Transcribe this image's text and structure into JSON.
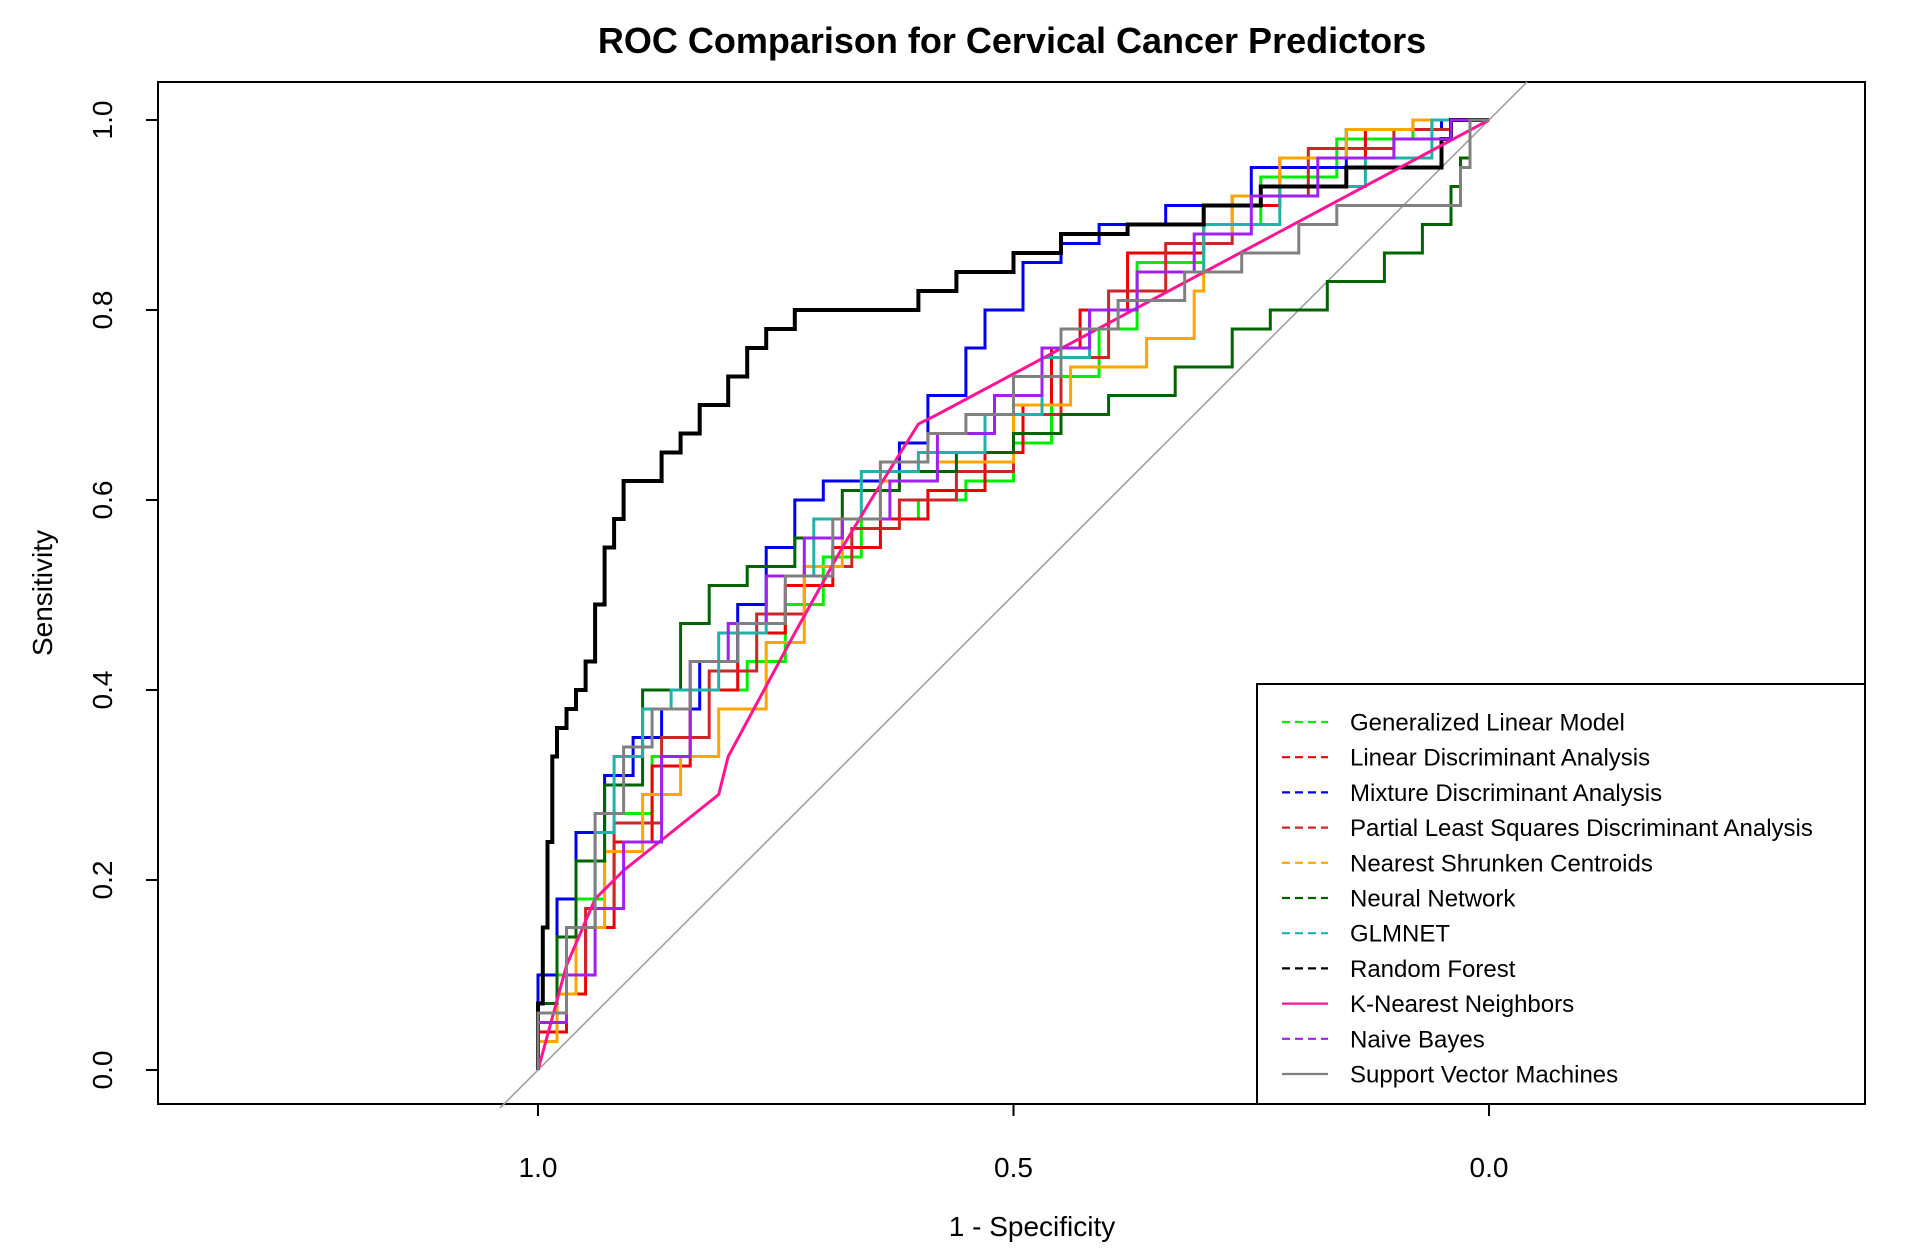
{
  "chart_data": {
    "type": "line",
    "title": "ROC Comparison for Cervical Cancer Predictors",
    "xlabel": "1 - Specificity",
    "ylabel": "Sensitivity",
    "x_axis_reversed": true,
    "xlim": [
      1.4,
      -0.4
    ],
    "ylim": [
      0.0,
      1.0
    ],
    "xticks": [
      1.0,
      0.5,
      0.0
    ],
    "xtick_labels": [
      "1.0",
      "0.5",
      "0.0"
    ],
    "yticks": [
      0.0,
      0.2,
      0.4,
      0.6,
      0.8,
      1.0
    ],
    "ytick_labels": [
      "0.0",
      "0.2",
      "0.4",
      "0.6",
      "0.8",
      "1.0"
    ],
    "grid": false,
    "legend_position": "bottom-right",
    "reference_line": {
      "from": [
        1.0,
        0.0
      ],
      "to": [
        0.0,
        1.0
      ],
      "color": "#a0a0a0"
    },
    "series": [
      {
        "name": "Generalized Linear Model",
        "color": "#00ee00",
        "dashed": true,
        "width": 3,
        "points": [
          [
            1.0,
            0.0
          ],
          [
            0.98,
            0.05
          ],
          [
            0.96,
            0.1
          ],
          [
            0.93,
            0.18
          ],
          [
            0.88,
            0.27
          ],
          [
            0.84,
            0.33
          ],
          [
            0.78,
            0.4
          ],
          [
            0.74,
            0.43
          ],
          [
            0.7,
            0.49
          ],
          [
            0.66,
            0.54
          ],
          [
            0.6,
            0.58
          ],
          [
            0.55,
            0.6
          ],
          [
            0.5,
            0.62
          ],
          [
            0.46,
            0.66
          ],
          [
            0.41,
            0.73
          ],
          [
            0.37,
            0.78
          ],
          [
            0.3,
            0.85
          ],
          [
            0.24,
            0.89
          ],
          [
            0.16,
            0.94
          ],
          [
            0.08,
            0.98
          ],
          [
            0.05,
            1.0
          ],
          [
            0.0,
            1.0
          ]
        ]
      },
      {
        "name": "Linear Discriminant Analysis",
        "color": "#ee0000",
        "dashed": true,
        "width": 3,
        "points": [
          [
            1.0,
            0.0
          ],
          [
            0.97,
            0.04
          ],
          [
            0.95,
            0.08
          ],
          [
            0.92,
            0.15
          ],
          [
            0.88,
            0.24
          ],
          [
            0.84,
            0.32
          ],
          [
            0.79,
            0.4
          ],
          [
            0.74,
            0.46
          ],
          [
            0.69,
            0.51
          ],
          [
            0.64,
            0.55
          ],
          [
            0.59,
            0.58
          ],
          [
            0.53,
            0.61
          ],
          [
            0.49,
            0.65
          ],
          [
            0.46,
            0.7
          ],
          [
            0.43,
            0.76
          ],
          [
            0.38,
            0.8
          ],
          [
            0.3,
            0.86
          ],
          [
            0.22,
            0.91
          ],
          [
            0.13,
            0.96
          ],
          [
            0.06,
            0.99
          ],
          [
            0.0,
            1.0
          ]
        ]
      },
      {
        "name": "Mixture Discriminant Analysis",
        "color": "#0000ee",
        "dashed": true,
        "width": 3,
        "points": [
          [
            1.0,
            0.0
          ],
          [
            0.98,
            0.1
          ],
          [
            0.96,
            0.18
          ],
          [
            0.93,
            0.25
          ],
          [
            0.9,
            0.31
          ],
          [
            0.87,
            0.35
          ],
          [
            0.83,
            0.38
          ],
          [
            0.79,
            0.43
          ],
          [
            0.76,
            0.49
          ],
          [
            0.73,
            0.55
          ],
          [
            0.7,
            0.6
          ],
          [
            0.67,
            0.62
          ],
          [
            0.62,
            0.62
          ],
          [
            0.59,
            0.66
          ],
          [
            0.55,
            0.71
          ],
          [
            0.53,
            0.76
          ],
          [
            0.49,
            0.8
          ],
          [
            0.45,
            0.85
          ],
          [
            0.41,
            0.87
          ],
          [
            0.34,
            0.89
          ],
          [
            0.25,
            0.91
          ],
          [
            0.15,
            0.95
          ],
          [
            0.05,
            0.99
          ],
          [
            0.0,
            1.0
          ]
        ]
      },
      {
        "name": "Partial Least Squares Discriminant Analysis",
        "color": "#cd2626",
        "dashed": true,
        "width": 3,
        "points": [
          [
            1.0,
            0.0
          ],
          [
            0.97,
            0.05
          ],
          [
            0.95,
            0.1
          ],
          [
            0.92,
            0.17
          ],
          [
            0.87,
            0.26
          ],
          [
            0.82,
            0.35
          ],
          [
            0.77,
            0.42
          ],
          [
            0.72,
            0.48
          ],
          [
            0.67,
            0.53
          ],
          [
            0.62,
            0.57
          ],
          [
            0.56,
            0.6
          ],
          [
            0.5,
            0.63
          ],
          [
            0.45,
            0.69
          ],
          [
            0.4,
            0.75
          ],
          [
            0.34,
            0.82
          ],
          [
            0.27,
            0.87
          ],
          [
            0.19,
            0.92
          ],
          [
            0.1,
            0.97
          ],
          [
            0.04,
            0.99
          ],
          [
            0.0,
            1.0
          ]
        ]
      },
      {
        "name": "Nearest Shrunken Centroids",
        "color": "#ffa500",
        "dashed": true,
        "width": 3,
        "points": [
          [
            1.0,
            0.0
          ],
          [
            0.98,
            0.03
          ],
          [
            0.96,
            0.08
          ],
          [
            0.93,
            0.15
          ],
          [
            0.89,
            0.23
          ],
          [
            0.85,
            0.29
          ],
          [
            0.81,
            0.33
          ],
          [
            0.76,
            0.38
          ],
          [
            0.72,
            0.45
          ],
          [
            0.68,
            0.53
          ],
          [
            0.64,
            0.58
          ],
          [
            0.58,
            0.62
          ],
          [
            0.5,
            0.64
          ],
          [
            0.44,
            0.7
          ],
          [
            0.36,
            0.74
          ],
          [
            0.31,
            0.77
          ],
          [
            0.3,
            0.82
          ],
          [
            0.27,
            0.88
          ],
          [
            0.22,
            0.92
          ],
          [
            0.15,
            0.96
          ],
          [
            0.08,
            0.99
          ],
          [
            0.0,
            1.0
          ]
        ]
      },
      {
        "name": "Neural Network",
        "color": "#006400",
        "dashed": true,
        "width": 3,
        "points": [
          [
            1.0,
            0.0
          ],
          [
            0.98,
            0.07
          ],
          [
            0.96,
            0.14
          ],
          [
            0.93,
            0.22
          ],
          [
            0.89,
            0.3
          ],
          [
            0.85,
            0.4
          ],
          [
            0.82,
            0.47
          ],
          [
            0.78,
            0.51
          ],
          [
            0.73,
            0.53
          ],
          [
            0.68,
            0.56
          ],
          [
            0.62,
            0.61
          ],
          [
            0.56,
            0.63
          ],
          [
            0.5,
            0.65
          ],
          [
            0.45,
            0.67
          ],
          [
            0.4,
            0.69
          ],
          [
            0.33,
            0.71
          ],
          [
            0.27,
            0.74
          ],
          [
            0.23,
            0.78
          ],
          [
            0.17,
            0.8
          ],
          [
            0.11,
            0.83
          ],
          [
            0.07,
            0.86
          ],
          [
            0.04,
            0.89
          ],
          [
            0.03,
            0.93
          ],
          [
            0.02,
            0.96
          ],
          [
            0.0,
            1.0
          ]
        ]
      },
      {
        "name": "GLMNET",
        "color": "#20b2aa",
        "dashed": true,
        "width": 3,
        "points": [
          [
            1.0,
            0.0
          ],
          [
            0.97,
            0.06
          ],
          [
            0.94,
            0.15
          ],
          [
            0.92,
            0.25
          ],
          [
            0.89,
            0.33
          ],
          [
            0.86,
            0.38
          ],
          [
            0.81,
            0.4
          ],
          [
            0.76,
            0.46
          ],
          [
            0.71,
            0.52
          ],
          [
            0.66,
            0.58
          ],
          [
            0.6,
            0.63
          ],
          [
            0.53,
            0.65
          ],
          [
            0.47,
            0.69
          ],
          [
            0.42,
            0.75
          ],
          [
            0.37,
            0.8
          ],
          [
            0.3,
            0.84
          ],
          [
            0.22,
            0.89
          ],
          [
            0.13,
            0.93
          ],
          [
            0.06,
            0.96
          ],
          [
            0.0,
            1.0
          ]
        ]
      },
      {
        "name": "Random Forest",
        "color": "#000000",
        "dashed": true,
        "width": 4,
        "points": [
          [
            1.0,
            0.0
          ],
          [
            0.995,
            0.07
          ],
          [
            0.99,
            0.15
          ],
          [
            0.985,
            0.24
          ],
          [
            0.98,
            0.33
          ],
          [
            0.97,
            0.36
          ],
          [
            0.96,
            0.38
          ],
          [
            0.95,
            0.4
          ],
          [
            0.94,
            0.43
          ],
          [
            0.93,
            0.49
          ],
          [
            0.92,
            0.55
          ],
          [
            0.91,
            0.58
          ],
          [
            0.9,
            0.62
          ],
          [
            0.87,
            0.62
          ],
          [
            0.85,
            0.65
          ],
          [
            0.83,
            0.67
          ],
          [
            0.8,
            0.7
          ],
          [
            0.78,
            0.73
          ],
          [
            0.76,
            0.76
          ],
          [
            0.73,
            0.78
          ],
          [
            0.68,
            0.8
          ],
          [
            0.6,
            0.8
          ],
          [
            0.56,
            0.82
          ],
          [
            0.5,
            0.84
          ],
          [
            0.45,
            0.86
          ],
          [
            0.38,
            0.88
          ],
          [
            0.3,
            0.89
          ],
          [
            0.24,
            0.91
          ],
          [
            0.15,
            0.93
          ],
          [
            0.05,
            0.95
          ],
          [
            0.04,
            0.98
          ],
          [
            0.0,
            1.0
          ]
        ]
      },
      {
        "name": "K-Nearest Neighbors",
        "color": "#ff1493",
        "dashed": false,
        "width": 3,
        "points": [
          [
            1.0,
            0.0
          ],
          [
            0.97,
            0.11
          ],
          [
            0.94,
            0.18
          ],
          [
            0.91,
            0.21
          ],
          [
            0.81,
            0.29
          ],
          [
            0.8,
            0.33
          ],
          [
            0.73,
            0.46
          ],
          [
            0.68,
            0.55
          ],
          [
            0.65,
            0.6
          ],
          [
            0.6,
            0.68
          ],
          [
            0.58,
            0.69
          ],
          [
            0.0,
            1.0
          ]
        ]
      },
      {
        "name": "Naive Bayes",
        "color": "#a020f0",
        "dashed": true,
        "width": 3,
        "points": [
          [
            1.0,
            0.0
          ],
          [
            0.97,
            0.05
          ],
          [
            0.94,
            0.1
          ],
          [
            0.91,
            0.17
          ],
          [
            0.87,
            0.24
          ],
          [
            0.84,
            0.33
          ],
          [
            0.8,
            0.43
          ],
          [
            0.76,
            0.47
          ],
          [
            0.72,
            0.52
          ],
          [
            0.68,
            0.56
          ],
          [
            0.63,
            0.58
          ],
          [
            0.58,
            0.62
          ],
          [
            0.52,
            0.67
          ],
          [
            0.47,
            0.71
          ],
          [
            0.42,
            0.76
          ],
          [
            0.37,
            0.8
          ],
          [
            0.31,
            0.84
          ],
          [
            0.25,
            0.88
          ],
          [
            0.18,
            0.92
          ],
          [
            0.1,
            0.96
          ],
          [
            0.04,
            0.98
          ],
          [
            0.0,
            1.0
          ]
        ]
      },
      {
        "name": "Support Vector Machines",
        "color": "#808080",
        "dashed": false,
        "width": 3,
        "points": [
          [
            1.0,
            0.0
          ],
          [
            0.97,
            0.06
          ],
          [
            0.94,
            0.15
          ],
          [
            0.91,
            0.27
          ],
          [
            0.88,
            0.34
          ],
          [
            0.84,
            0.38
          ],
          [
            0.79,
            0.43
          ],
          [
            0.74,
            0.47
          ],
          [
            0.69,
            0.52
          ],
          [
            0.64,
            0.58
          ],
          [
            0.59,
            0.64
          ],
          [
            0.55,
            0.67
          ],
          [
            0.5,
            0.69
          ],
          [
            0.45,
            0.73
          ],
          [
            0.39,
            0.78
          ],
          [
            0.32,
            0.81
          ],
          [
            0.26,
            0.84
          ],
          [
            0.2,
            0.86
          ],
          [
            0.16,
            0.89
          ],
          [
            0.1,
            0.91
          ],
          [
            0.03,
            0.91
          ],
          [
            0.02,
            0.95
          ],
          [
            0.0,
            1.0
          ]
        ]
      }
    ]
  }
}
